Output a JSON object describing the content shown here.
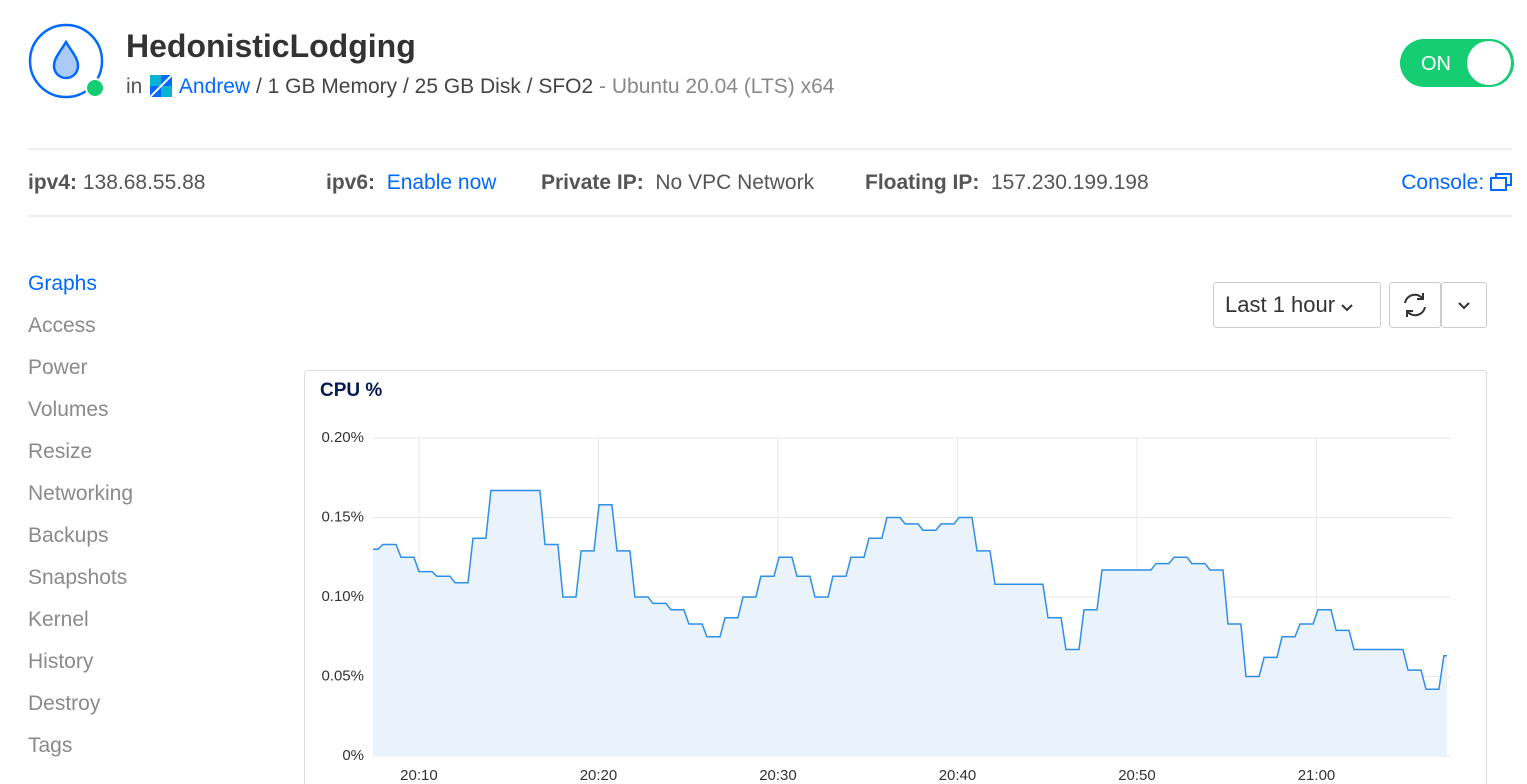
{
  "header": {
    "title": "HedonisticLodging",
    "in": "in",
    "team": "Andrew",
    "specs": "/ 1 GB Memory / 25 GB Disk / SFO2",
    "image": "- Ubuntu 20.04 (LTS) x64",
    "status": "ON"
  },
  "network": [
    {
      "label": "ipv4:",
      "value": "138.68.55.88"
    },
    {
      "label": "ipv6:",
      "value": "Enable now"
    },
    {
      "label": "Private IP:",
      "value": "No VPC Network"
    },
    {
      "label": "Floating IP:",
      "value": "157.230.199.198"
    }
  ],
  "console": "Console:",
  "nav": [
    "Graphs",
    "Access",
    "Power",
    "Volumes",
    "Resize",
    "Networking",
    "Backups",
    "Snapshots",
    "Kernel",
    "History",
    "Destroy",
    "Tags"
  ],
  "controls": {
    "range": "Last 1 hour"
  },
  "chart_data": {
    "type": "line",
    "title": "CPU %",
    "color": "#2f8ee5",
    "fill": "#eaf3fc",
    "grid": true,
    "x": [
      7.44,
      7.72,
      7.99,
      8.72,
      9.0,
      9.72,
      10.0,
      10.72,
      11.0,
      11.73,
      12.01,
      12.73,
      13.01,
      13.73,
      14.01,
      16.74,
      17.02,
      17.74,
      18.02,
      18.75,
      19.03,
      19.75,
      20.03,
      20.75,
      21.03,
      21.75,
      22.03,
      22.76,
      23.04,
      23.76,
      24.04,
      24.76,
      25.04,
      25.77,
      26.04,
      26.77,
      27.05,
      27.77,
      28.05,
      28.77,
      29.05,
      29.78,
      30.06,
      30.78,
      31.06,
      31.78,
      32.06,
      32.79,
      33.06,
      33.79,
      34.07,
      34.79,
      35.07,
      35.79,
      36.07,
      36.8,
      37.08,
      37.8,
      38.08,
      38.8,
      39.08,
      39.81,
      40.08,
      40.81,
      41.09,
      41.81,
      42.09,
      44.76,
      45.04,
      45.77,
      46.04,
      46.77,
      47.05,
      47.77,
      48.05,
      50.78,
      51.06,
      51.78,
      52.06,
      52.79,
      53.06,
      53.79,
      54.07,
      54.79,
      55.07,
      55.79,
      56.07,
      56.8,
      57.08,
      57.8,
      58.08,
      58.8,
      59.08,
      59.81,
      60.08,
      60.81,
      61.09,
      61.81,
      62.09,
      64.82,
      65.1,
      65.82,
      66.1,
      66.82,
      67.1,
      67.27
    ],
    "values": [
      0.13,
      0.13,
      0.133,
      0.133,
      0.125,
      0.125,
      0.116,
      0.116,
      0.113,
      0.113,
      0.109,
      0.109,
      0.137,
      0.137,
      0.167,
      0.167,
      0.133,
      0.133,
      0.1,
      0.1,
      0.129,
      0.129,
      0.158,
      0.158,
      0.129,
      0.129,
      0.1,
      0.1,
      0.096,
      0.096,
      0.092,
      0.092,
      0.083,
      0.083,
      0.075,
      0.075,
      0.087,
      0.087,
      0.1,
      0.1,
      0.113,
      0.113,
      0.125,
      0.125,
      0.113,
      0.113,
      0.1,
      0.1,
      0.113,
      0.113,
      0.125,
      0.125,
      0.137,
      0.137,
      0.15,
      0.15,
      0.146,
      0.146,
      0.142,
      0.142,
      0.146,
      0.146,
      0.15,
      0.15,
      0.129,
      0.129,
      0.108,
      0.108,
      0.087,
      0.087,
      0.067,
      0.067,
      0.092,
      0.092,
      0.117,
      0.117,
      0.121,
      0.121,
      0.125,
      0.125,
      0.121,
      0.121,
      0.117,
      0.117,
      0.083,
      0.083,
      0.05,
      0.05,
      0.062,
      0.062,
      0.075,
      0.075,
      0.083,
      0.083,
      0.092,
      0.092,
      0.079,
      0.079,
      0.067,
      0.067,
      0.054,
      0.054,
      0.042,
      0.042,
      0.063,
      0.063
    ],
    "xlim": [
      7.44,
      67.27
    ],
    "xticks": [
      {
        "value": 10,
        "label": "20:10"
      },
      {
        "value": 20,
        "label": "20:20"
      },
      {
        "value": 30,
        "label": "20:30"
      },
      {
        "value": 40,
        "label": "20:40"
      },
      {
        "value": 50,
        "label": "20:50"
      },
      {
        "value": 60,
        "label": "21:00"
      }
    ],
    "ylim": [
      0,
      0.2
    ],
    "yticks": [
      {
        "value": 0,
        "label": "0%"
      },
      {
        "value": 0.05,
        "label": "0.05%"
      },
      {
        "value": 0.1,
        "label": "0.10%"
      },
      {
        "value": 0.15,
        "label": "0.15%"
      },
      {
        "value": 0.2,
        "label": "0.20%"
      }
    ]
  }
}
